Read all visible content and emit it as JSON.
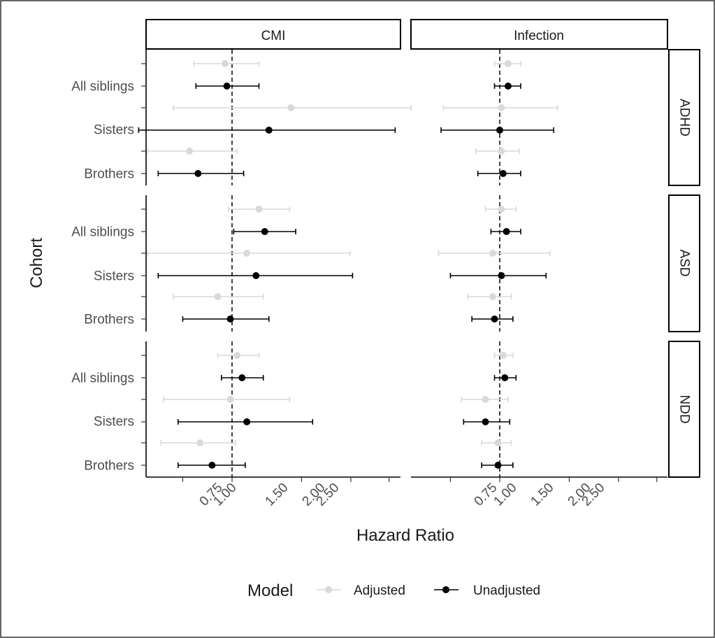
{
  "chart_data": {
    "type": "scatter",
    "subtype": "forest-plot",
    "xlabel": "Hazard Ratio",
    "ylabel": "Cohort",
    "x_scale": "log",
    "xlim": [
      0.5,
      3.6
    ],
    "x_ticks": [
      0.75,
      1.0,
      1.5,
      2.0,
      2.5
    ],
    "x_tick_labels": [
      "0.75",
      "1.00",
      "1.50",
      "2.00",
      "2.50"
    ],
    "reference_line": 1.0,
    "columns": [
      "CMI",
      "Infection"
    ],
    "rows": [
      "ADHD",
      "ASD",
      "NDD"
    ],
    "categories": [
      "All siblings",
      "Sisters",
      "Brothers"
    ],
    "legend": {
      "title": "Model",
      "position": "bottom",
      "entries": [
        {
          "name": "Adjusted",
          "color": "#d9d9d9"
        },
        {
          "name": "Unadjusted",
          "color": "#000000"
        }
      ]
    },
    "series_colors": {
      "Adjusted": "#d9d9d9",
      "Unadjusted": "#000000"
    },
    "grid": false,
    "panels": [
      {
        "column": "CMI",
        "row": "ADHD",
        "estimates": [
          {
            "cohort": "All siblings",
            "model": "Adjusted",
            "hr": 0.96,
            "lo": 0.8,
            "hi": 1.17
          },
          {
            "cohort": "All siblings",
            "model": "Unadjusted",
            "hr": 0.97,
            "lo": 0.81,
            "hi": 1.17
          },
          {
            "cohort": "Sisters",
            "model": "Adjusted",
            "hr": 1.41,
            "lo": 0.71,
            "hi": 2.84
          },
          {
            "cohort": "Sisters",
            "model": "Unadjusted",
            "hr": 1.24,
            "lo": 0.58,
            "hi": 2.59
          },
          {
            "cohort": "Brothers",
            "model": "Adjusted",
            "hr": 0.78,
            "lo": 0.61,
            "hi": 1.03
          },
          {
            "cohort": "Brothers",
            "model": "Unadjusted",
            "hr": 0.82,
            "lo": 0.65,
            "hi": 1.07
          }
        ]
      },
      {
        "column": "CMI",
        "row": "ASD",
        "estimates": [
          {
            "cohort": "All siblings",
            "model": "Adjusted",
            "hr": 1.17,
            "lo": 0.98,
            "hi": 1.4
          },
          {
            "cohort": "All siblings",
            "model": "Unadjusted",
            "hr": 1.21,
            "lo": 1.01,
            "hi": 1.45
          },
          {
            "cohort": "Sisters",
            "model": "Adjusted",
            "hr": 1.09,
            "lo": 0.61,
            "hi": 1.99
          },
          {
            "cohort": "Sisters",
            "model": "Unadjusted",
            "hr": 1.15,
            "lo": 0.65,
            "hi": 2.02
          },
          {
            "cohort": "Brothers",
            "model": "Adjusted",
            "hr": 0.92,
            "lo": 0.71,
            "hi": 1.2
          },
          {
            "cohort": "Brothers",
            "model": "Unadjusted",
            "hr": 0.99,
            "lo": 0.75,
            "hi": 1.24
          }
        ]
      },
      {
        "column": "CMI",
        "row": "NDD",
        "estimates": [
          {
            "cohort": "All siblings",
            "model": "Adjusted",
            "hr": 1.03,
            "lo": 0.92,
            "hi": 1.17
          },
          {
            "cohort": "All siblings",
            "model": "Unadjusted",
            "hr": 1.06,
            "lo": 0.94,
            "hi": 1.2
          },
          {
            "cohort": "Sisters",
            "model": "Adjusted",
            "hr": 0.99,
            "lo": 0.67,
            "hi": 1.4
          },
          {
            "cohort": "Sisters",
            "model": "Unadjusted",
            "hr": 1.09,
            "lo": 0.73,
            "hi": 1.6
          },
          {
            "cohort": "Brothers",
            "model": "Adjusted",
            "hr": 0.83,
            "lo": 0.66,
            "hi": 1.02
          },
          {
            "cohort": "Brothers",
            "model": "Unadjusted",
            "hr": 0.89,
            "lo": 0.73,
            "hi": 1.08
          }
        ]
      },
      {
        "column": "Infection",
        "row": "ADHD",
        "estimates": [
          {
            "cohort": "All siblings",
            "model": "Adjusted",
            "hr": 1.05,
            "lo": 0.97,
            "hi": 1.13
          },
          {
            "cohort": "All siblings",
            "model": "Unadjusted",
            "hr": 1.05,
            "lo": 0.97,
            "hi": 1.13
          },
          {
            "cohort": "Sisters",
            "model": "Adjusted",
            "hr": 1.01,
            "lo": 0.72,
            "hi": 1.4
          },
          {
            "cohort": "Sisters",
            "model": "Unadjusted",
            "hr": 1.0,
            "lo": 0.71,
            "hi": 1.37
          },
          {
            "cohort": "Brothers",
            "model": "Adjusted",
            "hr": 1.01,
            "lo": 0.87,
            "hi": 1.12
          },
          {
            "cohort": "Brothers",
            "model": "Unadjusted",
            "hr": 1.02,
            "lo": 0.88,
            "hi": 1.13
          }
        ]
      },
      {
        "column": "Infection",
        "row": "ASD",
        "estimates": [
          {
            "cohort": "All siblings",
            "model": "Adjusted",
            "hr": 1.01,
            "lo": 0.92,
            "hi": 1.1
          },
          {
            "cohort": "All siblings",
            "model": "Unadjusted",
            "hr": 1.04,
            "lo": 0.95,
            "hi": 1.13
          },
          {
            "cohort": "Sisters",
            "model": "Adjusted",
            "hr": 0.96,
            "lo": 0.7,
            "hi": 1.34
          },
          {
            "cohort": "Sisters",
            "model": "Unadjusted",
            "hr": 1.01,
            "lo": 0.75,
            "hi": 1.31
          },
          {
            "cohort": "Brothers",
            "model": "Adjusted",
            "hr": 0.96,
            "lo": 0.83,
            "hi": 1.07
          },
          {
            "cohort": "Brothers",
            "model": "Unadjusted",
            "hr": 0.97,
            "lo": 0.85,
            "hi": 1.08
          }
        ]
      },
      {
        "column": "Infection",
        "row": "NDD",
        "estimates": [
          {
            "cohort": "All siblings",
            "model": "Adjusted",
            "hr": 1.02,
            "lo": 0.97,
            "hi": 1.08
          },
          {
            "cohort": "All siblings",
            "model": "Unadjusted",
            "hr": 1.03,
            "lo": 0.97,
            "hi": 1.1
          },
          {
            "cohort": "Sisters",
            "model": "Adjusted",
            "hr": 0.92,
            "lo": 0.8,
            "hi": 1.05
          },
          {
            "cohort": "Sisters",
            "model": "Unadjusted",
            "hr": 0.92,
            "lo": 0.81,
            "hi": 1.06
          },
          {
            "cohort": "Brothers",
            "model": "Adjusted",
            "hr": 0.99,
            "lo": 0.9,
            "hi": 1.07
          },
          {
            "cohort": "Brothers",
            "model": "Unadjusted",
            "hr": 0.99,
            "lo": 0.9,
            "hi": 1.08
          }
        ]
      }
    ]
  }
}
